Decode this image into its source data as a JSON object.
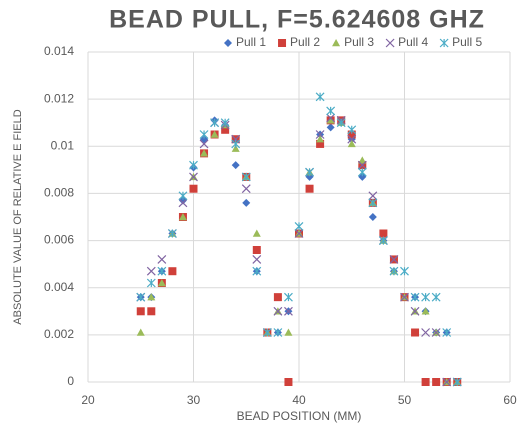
{
  "chart_data": {
    "type": "scatter",
    "title": "BEAD PULL, F=5.624608 GHZ",
    "x_label": "BEAD POSITION (MM)",
    "y_label": "ABSOLUTE VALUE OF RELATIVE E FIELD",
    "x": [
      25,
      26,
      27,
      28,
      29,
      30,
      31,
      32,
      33,
      34,
      35,
      36,
      37,
      38,
      39,
      40,
      41,
      42,
      43,
      44,
      45,
      46,
      47,
      48,
      49,
      50,
      51,
      52,
      53,
      54,
      55
    ],
    "series": [
      {
        "name": "Pull 1",
        "color": "#4472c4",
        "marker": "diamond",
        "values": [
          0.0036,
          0.0036,
          0.0047,
          0.0063,
          0.0077,
          0.0091,
          0.0103,
          0.0111,
          0.0109,
          0.0092,
          0.0076,
          0.0047,
          0.0021,
          0.0021,
          0.003,
          0.0063,
          0.0087,
          0.0105,
          0.0108,
          0.011,
          0.0103,
          0.0087,
          0.007,
          0.006,
          0.0047,
          0.0036,
          0.0036,
          0.003,
          0.0021,
          0.0021,
          0
        ]
      },
      {
        "name": "Pull 2",
        "color": "#d0403a",
        "marker": "square",
        "values": [
          0.003,
          0.003,
          0.0042,
          0.0047,
          0.007,
          0.0082,
          0.0097,
          0.0105,
          0.0107,
          0.0103,
          0.0087,
          0.0056,
          0.0021,
          0.0036,
          0,
          0.0063,
          0.0082,
          0.0101,
          0.0111,
          0.0111,
          0.0105,
          0.0092,
          0.0076,
          0.0063,
          0.0052,
          0.0036,
          0.0021,
          0,
          0,
          0,
          0
        ]
      },
      {
        "name": "Pull 3",
        "color": "#9bbb59",
        "marker": "triangle",
        "values": [
          0.0021,
          0.0036,
          0.0042,
          0.0063,
          0.007,
          0.0087,
          0.0097,
          0.0105,
          0.0109,
          0.0099,
          0.0087,
          0.0063,
          0.0021,
          0.003,
          0.0021,
          0.0063,
          0.0089,
          0.0103,
          0.0111,
          0.011,
          0.0101,
          0.0094,
          0.0076,
          0.006,
          0.0047,
          0.0036,
          0.003,
          0.003,
          0.0021,
          0,
          0
        ]
      },
      {
        "name": "Pull 4",
        "color": "#8064a2",
        "marker": "x",
        "values": [
          0.0036,
          0.0047,
          0.0052,
          0.0063,
          0.0076,
          0.0087,
          0.0101,
          0.011,
          0.0109,
          0.0103,
          0.0082,
          0.0052,
          0.0021,
          0.003,
          0.003,
          0.0063,
          0.0089,
          0.0105,
          0.0112,
          0.0111,
          0.0103,
          0.0092,
          0.0079,
          0.006,
          0.0052,
          0.0036,
          0.003,
          0.0021,
          0.0021,
          0,
          0
        ]
      },
      {
        "name": "Pull 5",
        "color": "#4bacc6",
        "marker": "star",
        "values": [
          0.0036,
          0.0042,
          0.0047,
          0.0063,
          0.0079,
          0.0092,
          0.0105,
          0.011,
          0.011,
          0.0101,
          0.0087,
          0.0047,
          0.0021,
          0.0021,
          0.0036,
          0.0066,
          0.0089,
          0.0121,
          0.0115,
          0.011,
          0.0107,
          0.0089,
          0.0076,
          0.006,
          0.0047,
          0.0047,
          0.0036,
          0.0036,
          0.0036,
          0.0021,
          0
        ]
      }
    ],
    "xlim": [
      20,
      60
    ],
    "xticks": [
      20,
      30,
      40,
      50,
      60
    ],
    "ylim": [
      0,
      0.014
    ],
    "yticks": [
      0,
      0.002,
      0.004,
      0.006,
      0.008,
      0.01,
      0.012,
      0.014
    ],
    "grid": true,
    "legend": "top"
  }
}
